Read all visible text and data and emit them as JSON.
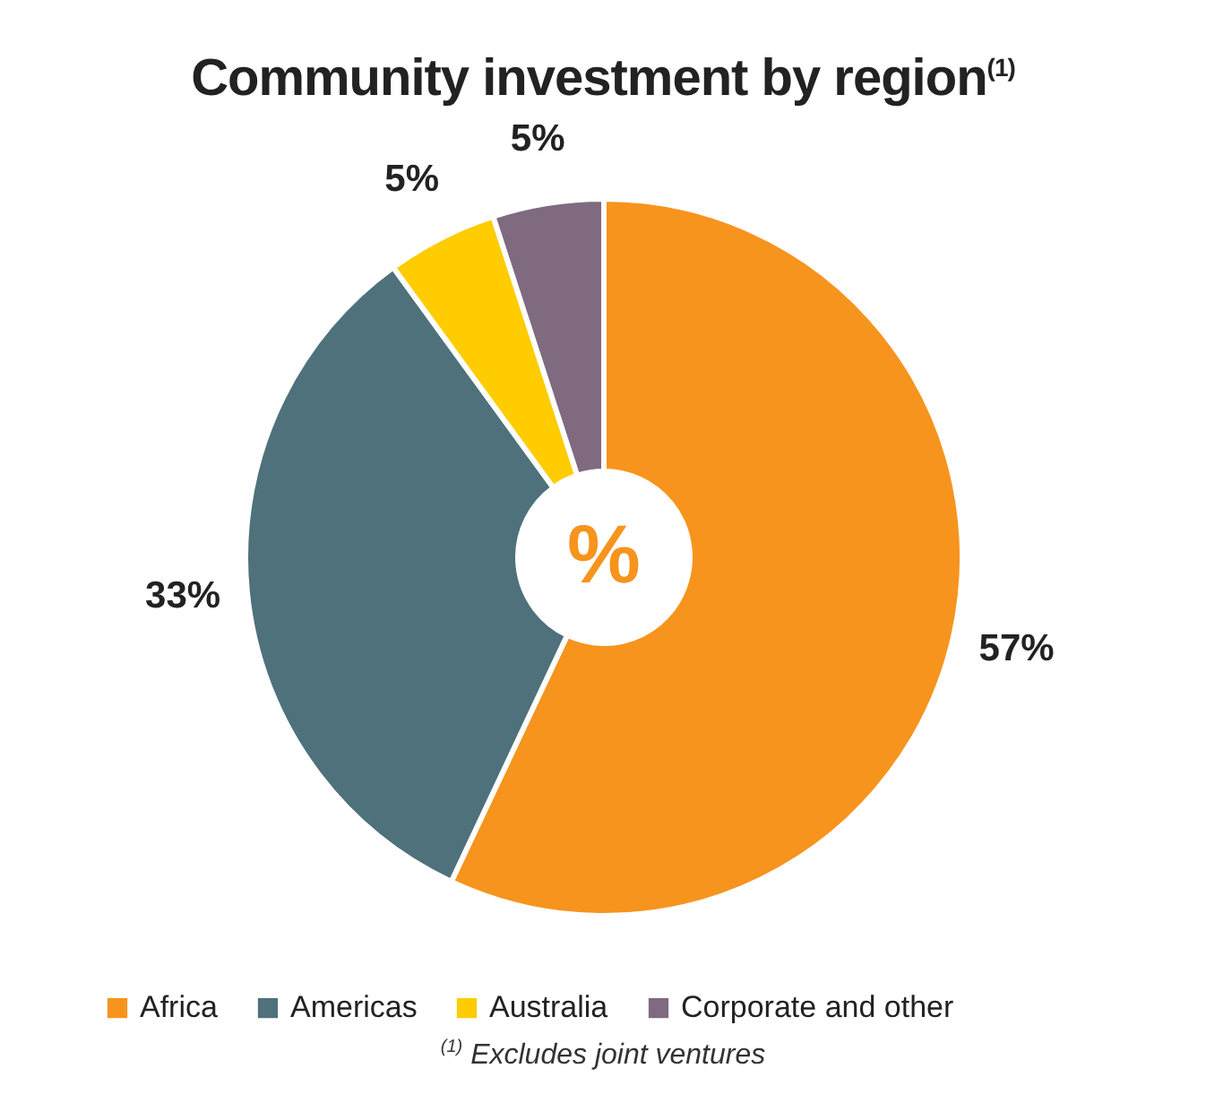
{
  "chart_data": {
    "type": "donut",
    "title": "Community investment by region$^{(1)}$",
    "categories": [
      "Africa",
      "Americas",
      "Australia",
      "Corporate and other"
    ],
    "values": [
      57,
      33,
      5,
      5
    ],
    "colors": [
      "#f7941d",
      "#4e717c",
      "#ffcc00",
      "#7f6a80"
    ],
    "value_labels": [
      "57%",
      "33%",
      "5%",
      "5%"
    ],
    "legend": "bottom",
    "annotations": [
      "%",
      "$^{(1)}$ Excludes joint ventures"
    ]
  }
}
